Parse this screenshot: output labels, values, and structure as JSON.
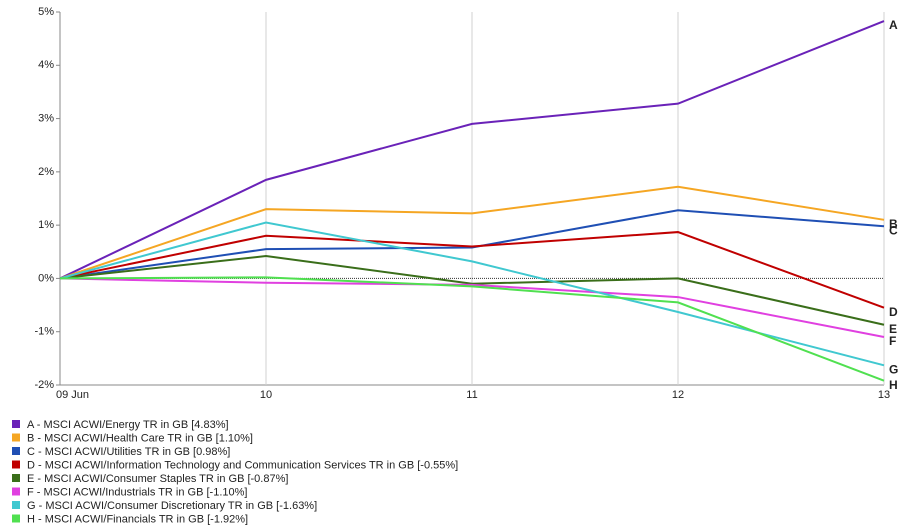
{
  "chart_data": {
    "type": "line",
    "categories": [
      "09 Jun",
      "10",
      "11",
      "12",
      "13"
    ],
    "ylim": [
      -2,
      5
    ],
    "yticks": [
      {
        "value": 5,
        "label": "5%"
      },
      {
        "value": 4,
        "label": "4%"
      },
      {
        "value": 3,
        "label": "3%"
      },
      {
        "value": 2,
        "label": "2%"
      },
      {
        "value": 1,
        "label": "1%"
      },
      {
        "value": 0,
        "label": "0%"
      },
      {
        "value": -1,
        "label": "-1%"
      },
      {
        "value": -2,
        "label": "-2%"
      }
    ],
    "grid": "x",
    "series": [
      {
        "name": "A - MSCI ACWI/Energy TR in GB [4.83%]",
        "label": "A",
        "color": "#6a22b8",
        "values": [
          0,
          1.85,
          2.9,
          3.28,
          4.83
        ]
      },
      {
        "name": "B - MSCI ACWI/Health Care TR in GB [1.10%]",
        "label": "B",
        "color": "#f5a623",
        "values": [
          0,
          1.3,
          1.22,
          1.72,
          1.1
        ]
      },
      {
        "name": "C - MSCI ACWI/Utilities TR in GB [0.98%]",
        "label": "C",
        "color": "#1f4fb4",
        "values": [
          0,
          0.55,
          0.58,
          1.28,
          0.98
        ]
      },
      {
        "name": "D - MSCI ACWI/Information Technology and Communication Services TR in GB [-0.55%]",
        "label": "D",
        "color": "#c00000",
        "values": [
          0,
          0.8,
          0.6,
          0.87,
          -0.55
        ]
      },
      {
        "name": "E - MSCI ACWI/Consumer Staples TR in GB [-0.87%]",
        "label": "E",
        "color": "#3a6e1a",
        "values": [
          0,
          0.42,
          -0.1,
          0.0,
          -0.87
        ]
      },
      {
        "name": "F - MSCI ACWI/Industrials TR in GB [-1.10%]",
        "label": "F",
        "color": "#e040e0",
        "values": [
          0,
          -0.08,
          -0.12,
          -0.35,
          -1.1
        ]
      },
      {
        "name": "G - MSCI ACWI/Consumer Discretionary TR in GB [-1.63%]",
        "label": "G",
        "color": "#40c8d0",
        "values": [
          0,
          1.05,
          0.32,
          -0.63,
          -1.63
        ]
      },
      {
        "name": "H - MSCI ACWI/Financials TR in GB [-1.92%]",
        "label": "H",
        "color": "#50e050",
        "values": [
          0,
          0.02,
          -0.15,
          -0.45,
          -1.92
        ]
      }
    ]
  }
}
